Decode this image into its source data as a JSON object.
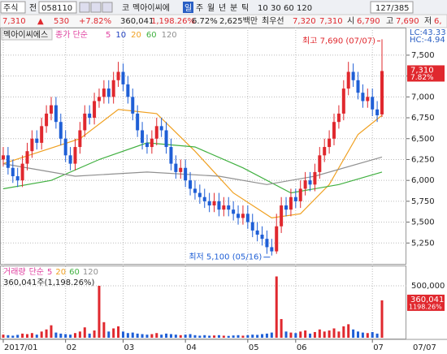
{
  "toolbar": [
    "주식",
    "전",
    "058110",
    "코",
    "멕아이씨에",
    "일",
    "주",
    "월",
    "년",
    "분",
    "틱",
    "10",
    "30",
    "60",
    "120",
    "127/385"
  ],
  "quote": [
    "7,310",
    "▲",
    "530",
    "+7.82%",
    "360,041",
    "1,198.26%",
    "6.72%",
    "2,625백만",
    "최우선",
    "7,320",
    "7,310",
    "시",
    "6,790",
    "고",
    "7,690",
    "저",
    "6,"
  ],
  "chart_data": {
    "type": "candlestick",
    "stock_name": "멕아이씨에스",
    "price_legend": "종가 단순",
    "series": [
      {
        "name": "5",
        "color": "#e040a0"
      },
      {
        "name": "10",
        "color": "#2040c0"
      },
      {
        "name": "20",
        "color": "#f0a020",
        "x": [
          0,
          8,
          16,
          24,
          32,
          40,
          48,
          56,
          62,
          68,
          74,
          79
        ],
        "values": [
          6200,
          6350,
          6500,
          6850,
          6800,
          6350,
          5850,
          5550,
          5600,
          5950,
          6550,
          6780
        ]
      },
      {
        "name": "60",
        "color": "#40b040",
        "x": [
          0,
          10,
          20,
          30,
          40,
          50,
          60,
          70,
          79
        ],
        "values": [
          5900,
          6000,
          6250,
          6450,
          6400,
          6150,
          5850,
          5950,
          6100
        ]
      },
      {
        "name": "120",
        "color": "#909090",
        "x": [
          0,
          15,
          30,
          45,
          55,
          65,
          79
        ],
        "values": [
          6200,
          6050,
          6100,
          6050,
          5950,
          6050,
          6280
        ]
      }
    ],
    "lc": "LC:43.33",
    "hc": "HC:-4.94",
    "high_note": "최고 7,690 (07/07)",
    "low_note": "최저 5,100 (05/16)",
    "last_label": "7,310",
    "last_change": "7.82%",
    "up_color": "#e0282e",
    "down_color": "#1f5fd6",
    "open": [
      6250,
      6300,
      6150,
      6050,
      6000,
      6200,
      6350,
      6500,
      6450,
      6650,
      6800,
      6900,
      6700,
      6500,
      6300,
      6200,
      6400,
      6600,
      6800,
      6750,
      6950,
      7000,
      7100,
      7000,
      7200,
      7300,
      7150,
      7000,
      6800,
      6600,
      6450,
      6400,
      6500,
      6650,
      6600,
      6400,
      6200,
      6100,
      6150,
      6000,
      5900,
      5850,
      5800,
      5750,
      5700,
      5750,
      5650,
      5700,
      5650,
      5600,
      5550,
      5600,
      5500,
      5400,
      5350,
      5300,
      5200,
      5150,
      5450,
      5700,
      5650,
      5800,
      5750,
      5900,
      6000,
      5950,
      6100,
      6300,
      6400,
      6500,
      6700,
      6800,
      7100,
      7300,
      7200,
      7050,
      6950,
      7000,
      6850,
      6790
    ],
    "high": [
      6400,
      6400,
      6250,
      6150,
      6300,
      6450,
      6600,
      6600,
      6750,
      6900,
      7000,
      7000,
      6800,
      6600,
      6400,
      6500,
      6700,
      6900,
      6900,
      7050,
      7100,
      7200,
      7200,
      7300,
      7420,
      7400,
      7250,
      7100,
      6900,
      6700,
      6550,
      6600,
      6750,
      6750,
      6700,
      6500,
      6300,
      6250,
      6250,
      6100,
      6000,
      5950,
      5900,
      5850,
      5850,
      5850,
      5800,
      5800,
      5750,
      5700,
      5700,
      5700,
      5600,
      5500,
      5450,
      5400,
      5300,
      5600,
      5800,
      5800,
      5900,
      5900,
      6000,
      6100,
      6100,
      6200,
      6400,
      6500,
      6600,
      6800,
      6900,
      7200,
      7420,
      7400,
      7300,
      7150,
      7100,
      7100,
      6950,
      7690
    ],
    "low": [
      6170,
      6070,
      5970,
      5920,
      5920,
      6120,
      6270,
      6370,
      6370,
      6570,
      6720,
      6620,
      6420,
      6220,
      6120,
      6120,
      6320,
      6520,
      6670,
      6670,
      6870,
      6920,
      6920,
      6920,
      7120,
      7070,
      6920,
      6720,
      6520,
      6370,
      6320,
      6320,
      6420,
      6520,
      6320,
      6120,
      6020,
      6020,
      5920,
      5820,
      5770,
      5720,
      5670,
      5620,
      5620,
      5570,
      5570,
      5570,
      5520,
      5470,
      5470,
      5420,
      5320,
      5270,
      5220,
      5120,
      5100,
      5120,
      5370,
      5570,
      5570,
      5670,
      5670,
      5820,
      5870,
      5870,
      6020,
      6220,
      6320,
      6420,
      6620,
      6720,
      7020,
      7120,
      6970,
      6870,
      6870,
      6770,
      6700,
      6760
    ],
    "close": [
      6300,
      6150,
      6050,
      6000,
      6200,
      6350,
      6500,
      6450,
      6650,
      6800,
      6900,
      6700,
      6500,
      6300,
      6200,
      6400,
      6600,
      6800,
      6750,
      6950,
      7000,
      7100,
      7000,
      7200,
      7300,
      7150,
      7000,
      6800,
      6600,
      6450,
      6400,
      6500,
      6650,
      6600,
      6400,
      6200,
      6100,
      6150,
      6000,
      5900,
      5850,
      5800,
      5750,
      5700,
      5750,
      5650,
      5700,
      5650,
      5600,
      5550,
      5600,
      5500,
      5400,
      5350,
      5300,
      5200,
      5150,
      5450,
      5700,
      5650,
      5800,
      5750,
      5900,
      6000,
      5950,
      6100,
      6300,
      6400,
      6500,
      6700,
      6800,
      7100,
      7300,
      7200,
      7050,
      6950,
      7000,
      6850,
      6780,
      7310
    ],
    "ylim": [
      5000,
      7830
    ],
    "yticks": [
      {
        "value": 5250,
        "label": "5,250"
      },
      {
        "value": 5500,
        "label": "5,500"
      },
      {
        "value": 5750,
        "label": "5,750"
      },
      {
        "value": 6000,
        "label": "6,000"
      },
      {
        "value": 6250,
        "label": "6,250"
      },
      {
        "value": 6500,
        "label": "6,500"
      },
      {
        "value": 6750,
        "label": "6,750"
      },
      {
        "value": 7000,
        "label": "7,000"
      },
      {
        "value": 7250,
        "label": "7,250"
      },
      {
        "value": 7500,
        "label": "7,500"
      }
    ],
    "volume_legend": [
      "거래량",
      "단순",
      "5",
      "20",
      "60",
      "120"
    ],
    "volume_legend_colors": [
      "#e040a0",
      "#e040a0",
      "#e040a0",
      "#f0a020",
      "#40b040",
      "#909090"
    ],
    "volume_note": "360,041주(1,198.26%)",
    "volume_last_label": "360,041",
    "volume_last_change": "1198.26%",
    "volume": [
      30000,
      25000,
      20000,
      28000,
      40000,
      35000,
      45000,
      30000,
      60000,
      80000,
      120000,
      50000,
      40000,
      35000,
      30000,
      45000,
      60000,
      100000,
      40000,
      70000,
      500000,
      150000,
      60000,
      90000,
      110000,
      60000,
      45000,
      50000,
      40000,
      35000,
      30000,
      35000,
      45000,
      30000,
      40000,
      35000,
      30000,
      25000,
      30000,
      35000,
      25000,
      20000,
      25000,
      20000,
      22000,
      25000,
      20000,
      18000,
      22000,
      25000,
      20000,
      25000,
      30000,
      28000,
      35000,
      40000,
      50000,
      590000,
      180000,
      60000,
      50000,
      45000,
      60000,
      70000,
      40000,
      55000,
      80000,
      60000,
      70000,
      90000,
      60000,
      110000,
      130000,
      80000,
      60000,
      50000,
      45000,
      55000,
      40000,
      360041
    ],
    "volume_ylim": [
      0,
      625000
    ],
    "volume_yticks": [
      {
        "value": 500000,
        "label": "500,000"
      }
    ],
    "xlim": [
      0,
      79
    ],
    "xticks": [
      {
        "value": 0,
        "label": "2017/01"
      },
      {
        "value": 13,
        "label": "02"
      },
      {
        "value": 25,
        "label": "03"
      },
      {
        "value": 38,
        "label": "04"
      },
      {
        "value": 51,
        "label": "05"
      },
      {
        "value": 61,
        "label": "06"
      },
      {
        "value": 77,
        "label": "07"
      }
    ],
    "last_date": "07/07"
  }
}
